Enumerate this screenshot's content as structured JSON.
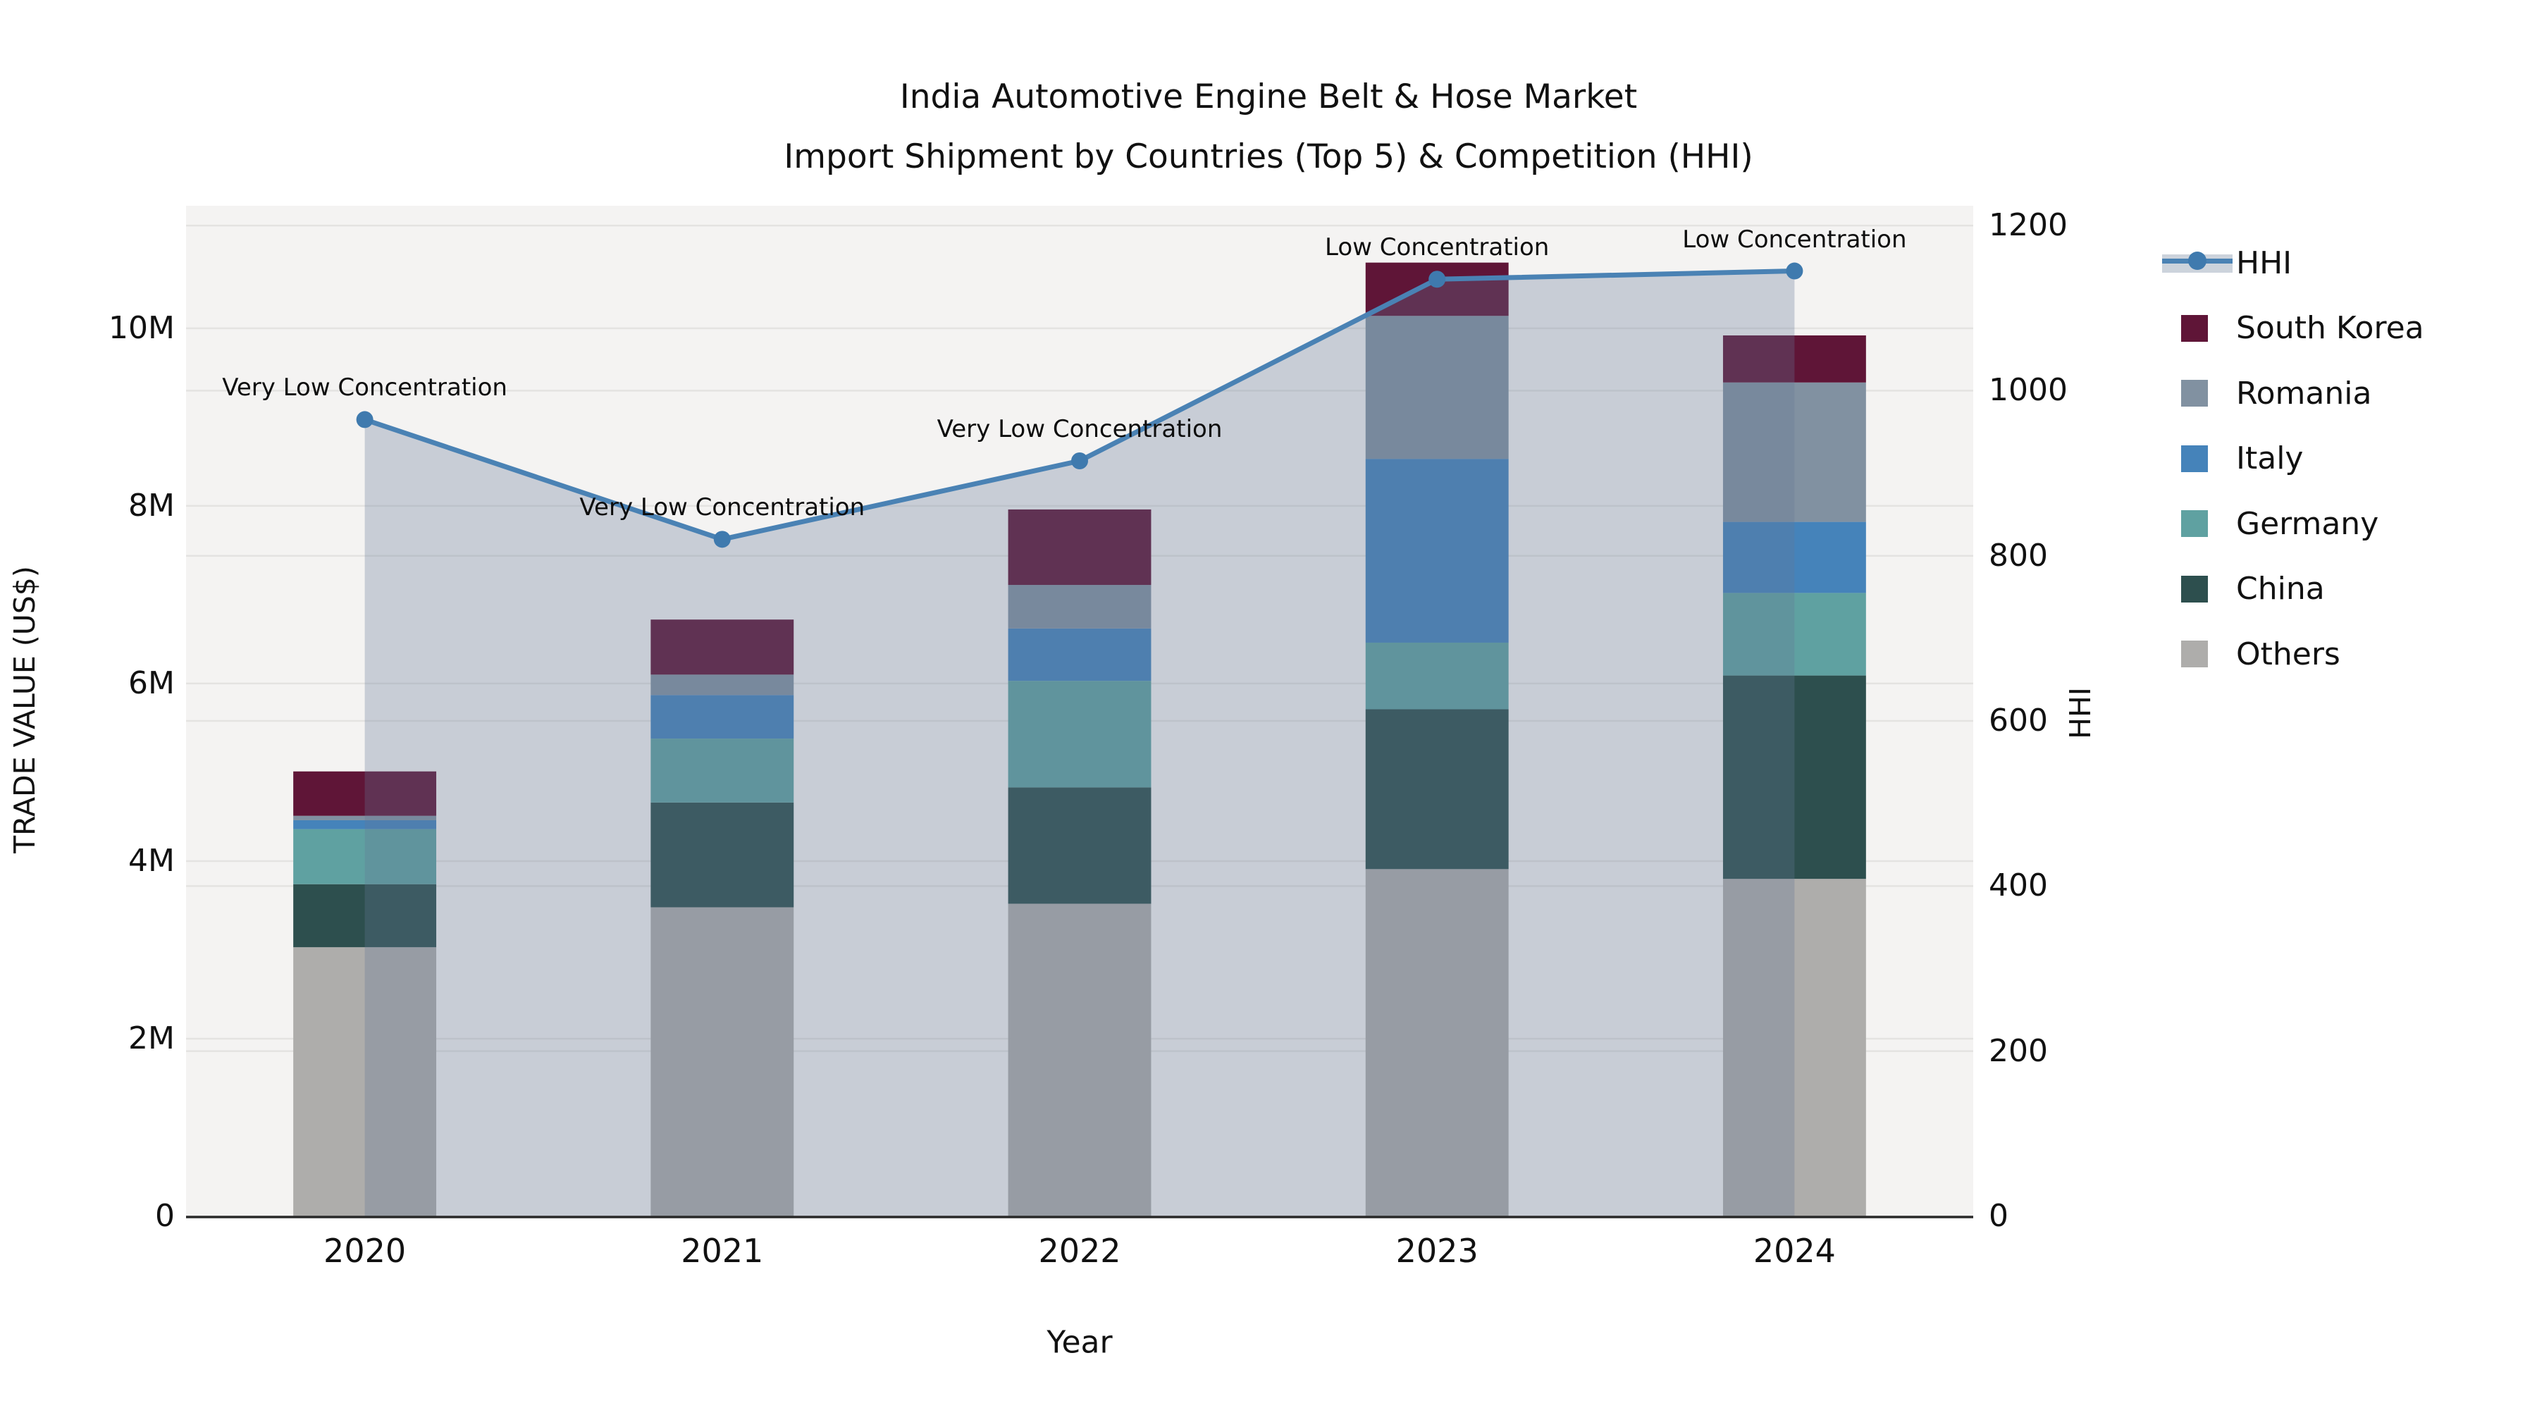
{
  "title": {
    "line1": "India Automotive Engine Belt & Hose Market",
    "line2": "Import Shipment by Countries (Top 5) & Competition (HHI)"
  },
  "axes": {
    "x_label": "Year",
    "y_left_label": "TRADE VALUE (US$)",
    "y_right_label": "HHI",
    "y_left_ticks": [
      {
        "label": "0",
        "value": 0
      },
      {
        "label": "2M",
        "value": 2
      },
      {
        "label": "4M",
        "value": 4
      },
      {
        "label": "6M",
        "value": 6
      },
      {
        "label": "8M",
        "value": 8
      },
      {
        "label": "10M",
        "value": 10
      }
    ],
    "y_right_ticks": [
      {
        "label": "0",
        "value": 0
      },
      {
        "label": "200",
        "value": 200
      },
      {
        "label": "400",
        "value": 400
      },
      {
        "label": "600",
        "value": 600
      },
      {
        "label": "800",
        "value": 800
      },
      {
        "label": "1000",
        "value": 1000
      },
      {
        "label": "1200",
        "value": 1200
      }
    ]
  },
  "colors": {
    "plot_bg": "#f4f3f2",
    "gridline": "#e4e3e1",
    "axis_line": "#2a2a2a",
    "hhi_line": "#4a82b4",
    "hhi_marker": "#3f7aae",
    "hhi_area_tint": "rgba(100,120,150,0.30)",
    "hhi_legend_band": "#ccd3dc",
    "text": "#111111"
  },
  "legend": [
    {
      "label": "HHI",
      "type": "line",
      "color": "#4a82b4"
    },
    {
      "label": "South Korea",
      "type": "swatch",
      "color": "#5f1537"
    },
    {
      "label": "Romania",
      "type": "swatch",
      "color": "#8191a1"
    },
    {
      "label": "Italy",
      "type": "swatch",
      "color": "#4583ba"
    },
    {
      "label": "Germany",
      "type": "swatch",
      "color": "#5fa1a1"
    },
    {
      "label": "China",
      "type": "swatch",
      "color": "#2d4f4e"
    },
    {
      "label": "Others",
      "type": "swatch",
      "color": "#aeadab"
    }
  ],
  "chart_data": {
    "type": "bar+line",
    "title": "India Automotive Engine Belt & Hose Market — Import Shipment by Countries (Top 5) & Competition (HHI)",
    "categories": [
      "2020",
      "2021",
      "2022",
      "2023",
      "2024"
    ],
    "bar_unit": "Million US$",
    "series": [
      {
        "name": "Others",
        "color": "#aeadab",
        "values": [
          3.03,
          3.48,
          3.52,
          3.91,
          3.8
        ]
      },
      {
        "name": "China",
        "color": "#2d4f4e",
        "values": [
          0.71,
          1.18,
          1.31,
          1.8,
          2.29
        ]
      },
      {
        "name": "Germany",
        "color": "#5fa1a1",
        "values": [
          0.62,
          0.72,
          1.2,
          0.75,
          0.93
        ]
      },
      {
        "name": "Italy",
        "color": "#4583ba",
        "values": [
          0.1,
          0.49,
          0.59,
          2.07,
          0.8
        ]
      },
      {
        "name": "Romania",
        "color": "#8191a1",
        "values": [
          0.05,
          0.23,
          0.49,
          1.61,
          1.57
        ]
      },
      {
        "name": "South Korea",
        "color": "#5f1537",
        "values": [
          0.5,
          0.62,
          0.85,
          0.6,
          0.53
        ]
      }
    ],
    "bar_totals": [
      5.01,
      6.72,
      7.96,
      10.74,
      9.92
    ],
    "line": {
      "name": "HHI",
      "values": [
        965,
        820,
        915,
        1135,
        1145
      ],
      "color": "#4a82b4",
      "area": true
    },
    "annotations": [
      {
        "category": "2020",
        "text": "Very Low Concentration"
      },
      {
        "category": "2021",
        "text": "Very Low Concentration"
      },
      {
        "category": "2022",
        "text": "Very Low Concentration"
      },
      {
        "category": "2023",
        "text": "Low Concentration"
      },
      {
        "category": "2024",
        "text": "Low Concentration"
      }
    ],
    "xlabel": "Year",
    "ylabel": "TRADE VALUE (US$)",
    "y2label": "HHI",
    "ylim": [
      0,
      11.38
    ],
    "y2lim": [
      0,
      1224
    ],
    "grid": true,
    "legend_position": "right-outside"
  }
}
